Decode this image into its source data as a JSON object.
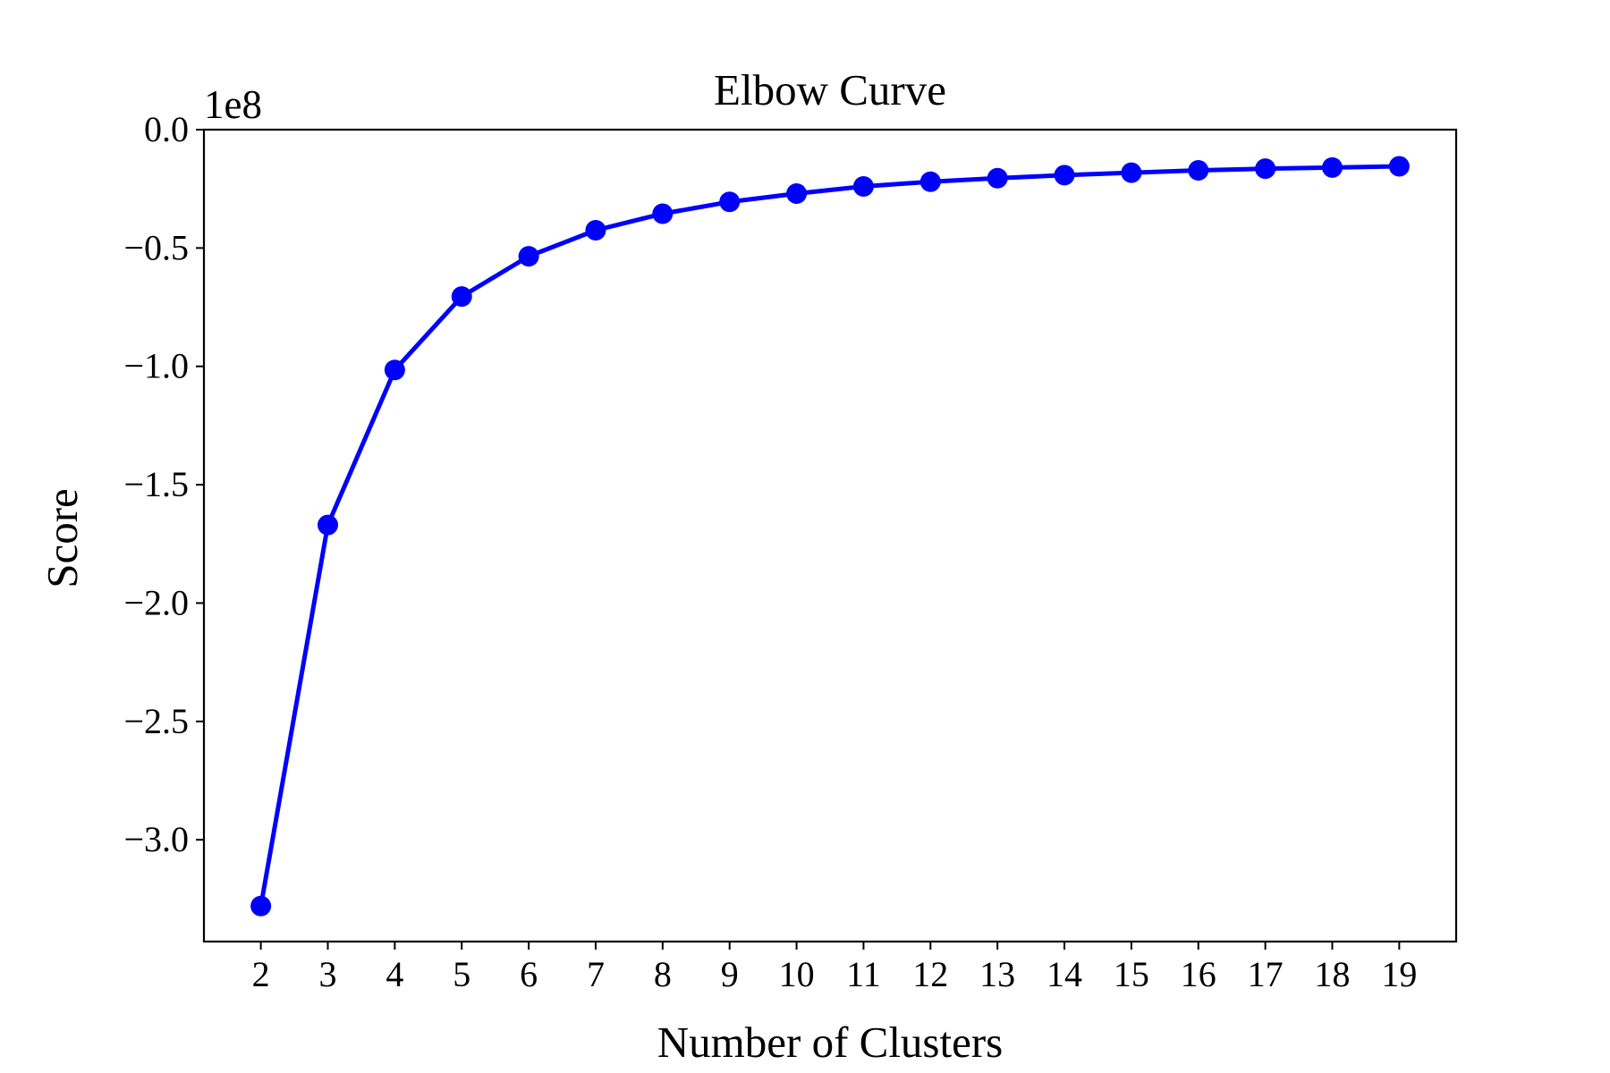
{
  "chart_data": {
    "type": "line",
    "title": "Elbow Curve",
    "xlabel": "Number of Clusters",
    "ylabel": "Score",
    "y_offset_label": "1e8",
    "x": [
      2,
      3,
      4,
      5,
      6,
      7,
      8,
      9,
      10,
      11,
      12,
      13,
      14,
      15,
      16,
      17,
      18,
      19
    ],
    "x_tick_labels": [
      "2",
      "3",
      "4",
      "5",
      "6",
      "7",
      "8",
      "9",
      "10",
      "11",
      "12",
      "13",
      "14",
      "15",
      "16",
      "17",
      "18",
      "19"
    ],
    "y_ticks": [
      0.0,
      -0.5,
      -1.0,
      -1.5,
      -2.0,
      -2.5,
      -3.0
    ],
    "y_tick_labels": [
      "0.0",
      "−0.5",
      "−1.0",
      "−1.5",
      "−2.0",
      "−2.5",
      "−3.0"
    ],
    "ylim": [
      -3.43,
      0.0
    ],
    "xlim": [
      1.15,
      19.85
    ],
    "y_unit_multiplier": 100000000,
    "series": [
      {
        "values": [
          -3.28,
          -1.67,
          -1.015,
          -0.705,
          -0.535,
          -0.425,
          -0.355,
          -0.305,
          -0.27,
          -0.24,
          -0.22,
          -0.205,
          -0.192,
          -0.182,
          -0.172,
          -0.165,
          -0.16,
          -0.155
        ],
        "color": "#0000ff",
        "marker": "circle"
      }
    ],
    "grid": false,
    "legend": "none"
  }
}
